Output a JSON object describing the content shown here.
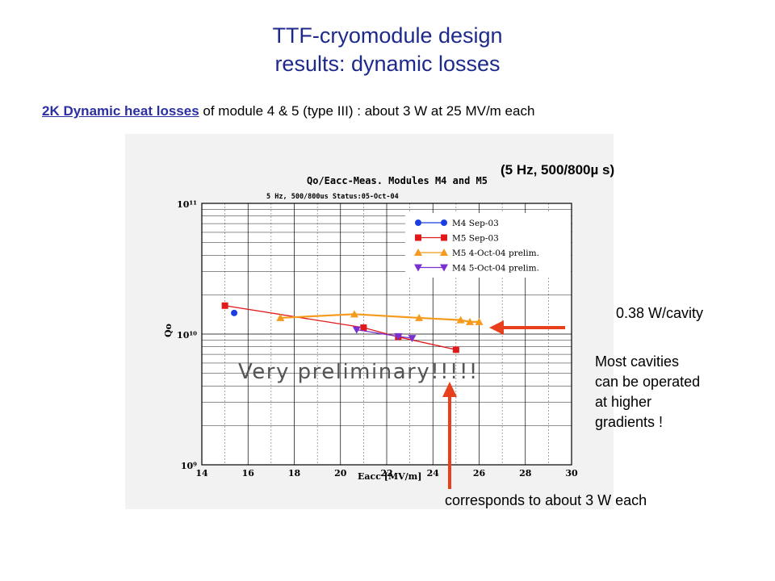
{
  "slide": {
    "title_line1": "TTF-cryomodule design",
    "title_line2": "results: dynamic losses",
    "subtitle_link": "2K Dynamic heat losses",
    "subtitle_rest": " of module 4 & 5 (type III) : about 3 W at 25 MV/m each",
    "conditions": "(5 Hz, 500/800µ s)",
    "note_watt": "0.38 W/cavity",
    "note_cavities_lines": [
      "Most cavities",
      "can be operated",
      "at higher",
      "gradients !"
    ],
    "note_each": "corresponds to about 3 W each"
  },
  "colors": {
    "title": "#1d2a8c",
    "arrow": "#e8401c",
    "M4_Sep03": "#1a3fe0",
    "M5_Sep03": "#e01a1a",
    "M5_Oct04": "#f59a1a",
    "M4_Oct04": "#7a2fd0"
  },
  "chart_data": {
    "type": "scatter",
    "title": "Qo/Eacc-Meas. Modules M4 and M5",
    "subtitle": "5 Hz, 500/800us Status:05-Oct-04",
    "watermark": "Very preliminary!!!!!",
    "xlabel": "Eacc [MV/m]",
    "ylabel": "Qo",
    "xlim": [
      14,
      30
    ],
    "ylim": [
      1000000000.0,
      100000000000.0
    ],
    "yscale": "log",
    "x_ticks": [
      "14",
      "16",
      "18",
      "20",
      "22",
      "24",
      "26",
      "28",
      "30"
    ],
    "y_ticks": [
      "10⁹",
      "10¹⁰",
      "10¹¹"
    ],
    "legend_position": "top-right",
    "series": [
      {
        "name": "M4 Sep-03",
        "marker": "circle",
        "color": "#1a3fe0",
        "points": [
          [
            15.4,
            14500000000.0
          ]
        ]
      },
      {
        "name": "M5 Sep-03",
        "marker": "square",
        "color": "#e01a1a",
        "points": [
          [
            15.0,
            16500000000.0
          ],
          [
            21.0,
            11200000000.0
          ],
          [
            22.5,
            9500000000.0
          ],
          [
            25.0,
            7600000000.0
          ]
        ]
      },
      {
        "name": "M5 4-Oct-04 prelim.",
        "marker": "triangle-up",
        "color": "#f59a1a",
        "points": [
          [
            17.4,
            13300000000.0
          ],
          [
            20.6,
            14200000000.0
          ],
          [
            23.4,
            13300000000.0
          ],
          [
            25.2,
            12800000000.0
          ],
          [
            25.6,
            12400000000.0
          ],
          [
            26.0,
            12400000000.0
          ]
        ]
      },
      {
        "name": "M4 5-Oct-04 prelim.",
        "marker": "triangle-down",
        "color": "#7a2fd0",
        "points": [
          [
            20.7,
            10800000000.0
          ],
          [
            22.5,
            9600000000.0
          ],
          [
            23.1,
            9300000000.0
          ]
        ]
      }
    ]
  }
}
